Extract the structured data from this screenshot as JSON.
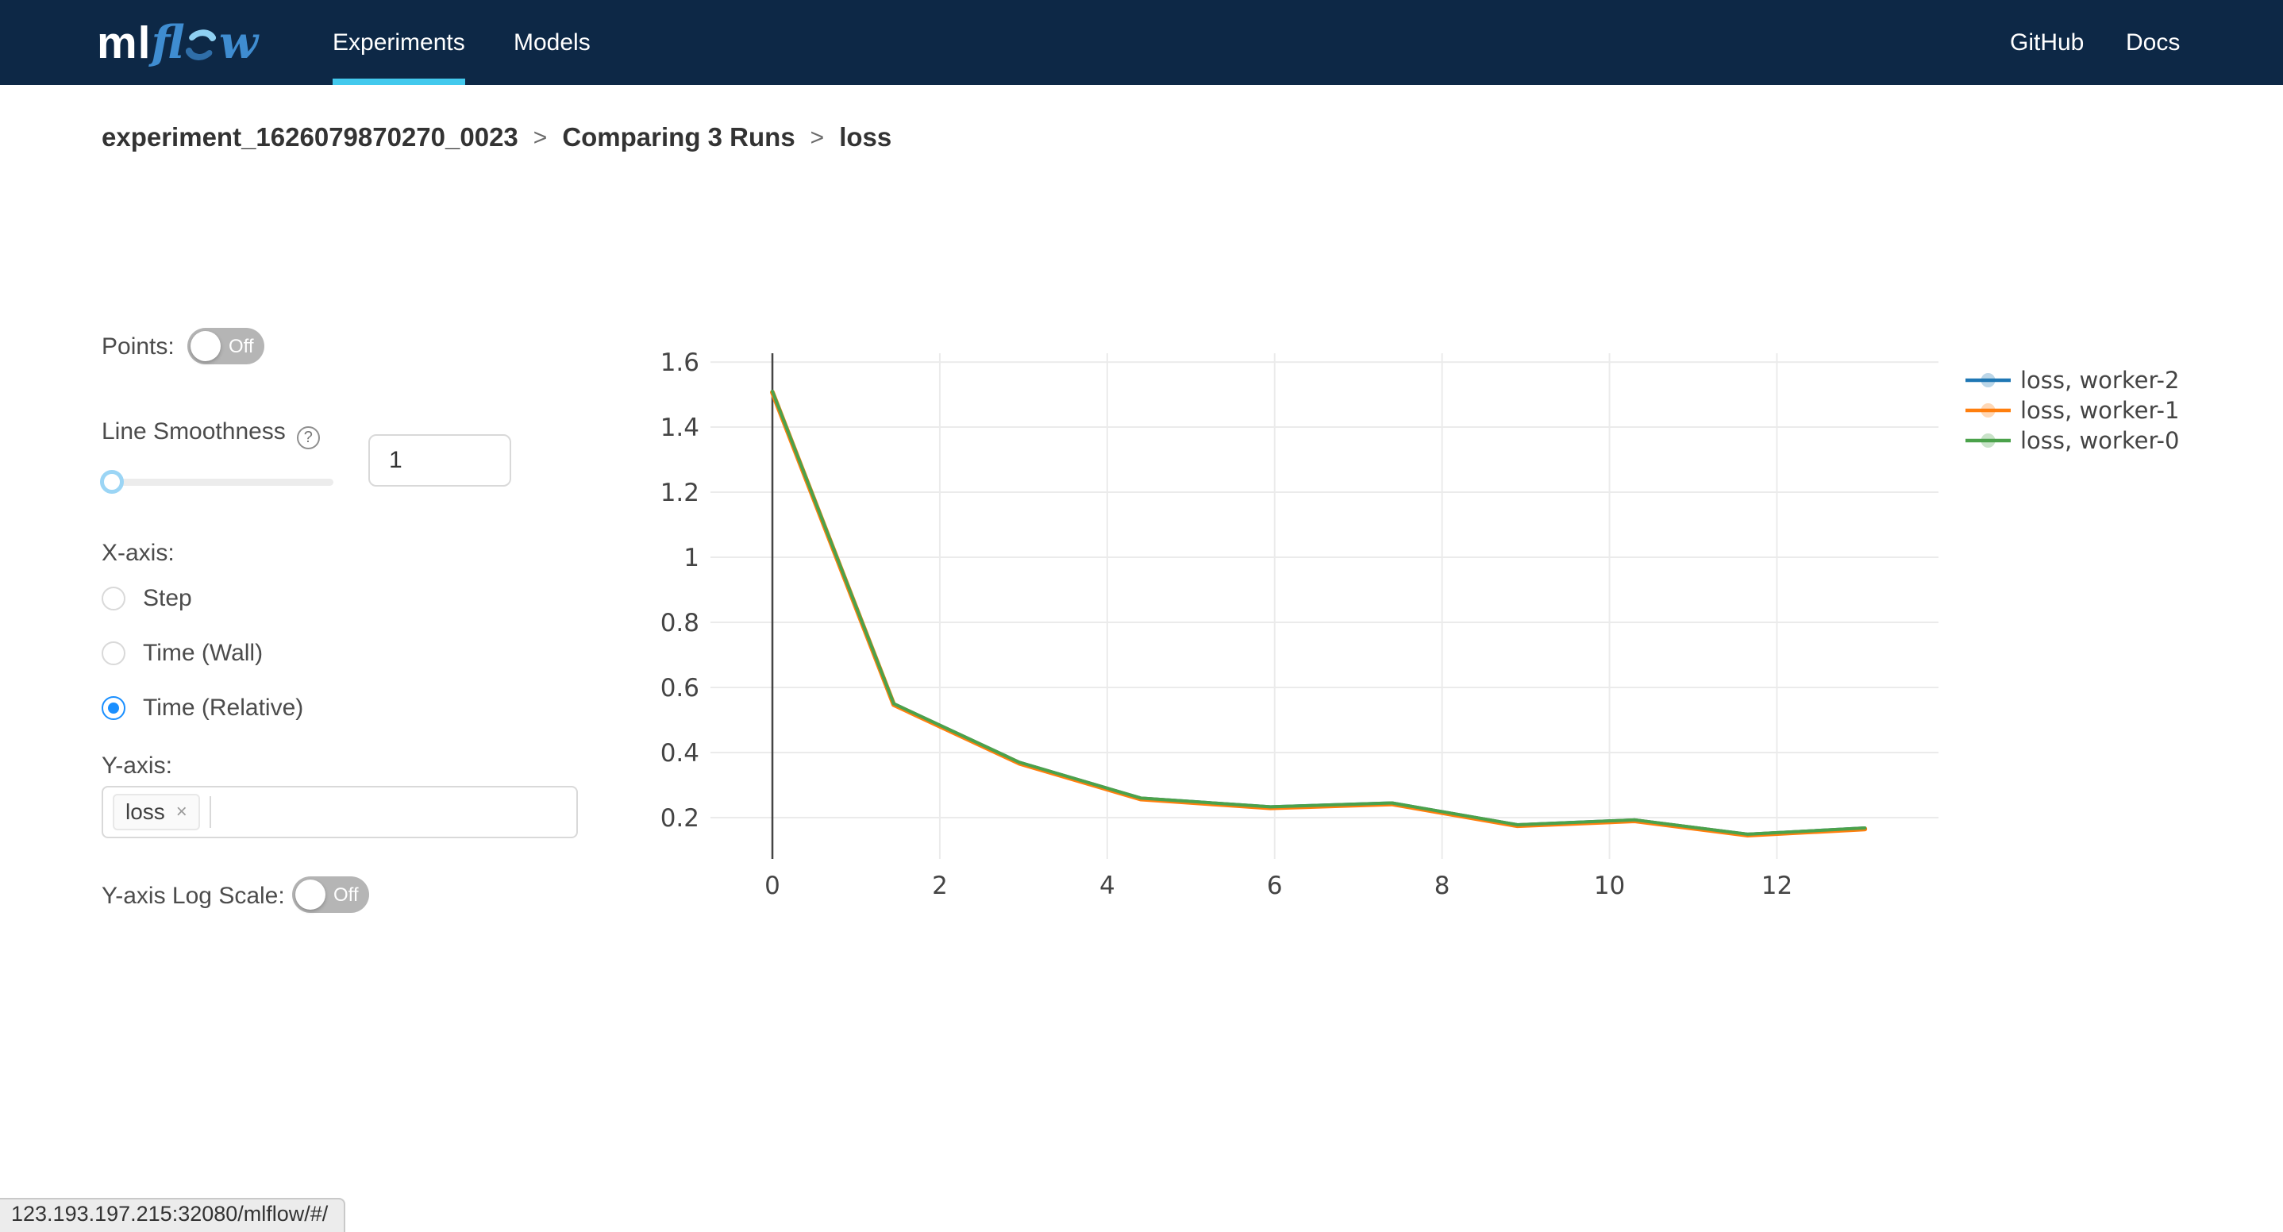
{
  "navbar": {
    "logo": {
      "ml": "ml",
      "flow_fl": "fl",
      "flow_w": "w"
    },
    "tabs": [
      {
        "label": "Experiments",
        "active": true
      },
      {
        "label": "Models",
        "active": false
      }
    ],
    "links": [
      {
        "label": "GitHub"
      },
      {
        "label": "Docs"
      }
    ],
    "colors": {
      "background": "#0d2846",
      "active_tab_underline": "#43c9ed"
    }
  },
  "breadcrumb": {
    "separator": ">",
    "items": [
      {
        "label": "experiment_1626079870270_0023"
      },
      {
        "label": "Comparing 3 Runs"
      },
      {
        "label": "loss"
      }
    ]
  },
  "controls": {
    "points": {
      "label": "Points:",
      "state": "Off"
    },
    "smoothness": {
      "label": "Line Smoothness",
      "help": "?",
      "value": "1"
    },
    "xaxis": {
      "label": "X-axis:",
      "options": [
        {
          "label": "Step",
          "selected": false
        },
        {
          "label": "Time (Wall)",
          "selected": false
        },
        {
          "label": "Time (Relative)",
          "selected": true
        }
      ]
    },
    "yaxis": {
      "label": "Y-axis:",
      "tags": [
        {
          "label": "loss",
          "remove": "×"
        }
      ]
    },
    "log_scale": {
      "label": "Y-axis Log Scale:",
      "state": "Off"
    },
    "accent_color": "#1a8fff"
  },
  "chart_data": {
    "type": "line",
    "x": [
      0,
      1.45,
      2.95,
      4.4,
      5.95,
      7.4,
      8.9,
      10.3,
      11.65,
      13.05
    ],
    "series": [
      {
        "name": "loss, worker-2",
        "color": "#1f77b4",
        "values": [
          1.51,
          0.55,
          0.37,
          0.26,
          0.233,
          0.245,
          0.178,
          0.193,
          0.149,
          0.168
        ]
      },
      {
        "name": "loss, worker-1",
        "color": "#ff7f0e",
        "values": [
          1.51,
          0.55,
          0.37,
          0.26,
          0.233,
          0.245,
          0.178,
          0.193,
          0.149,
          0.168
        ]
      },
      {
        "name": "loss, worker-0",
        "color": "#4ba24b",
        "values": [
          1.51,
          0.55,
          0.37,
          0.26,
          0.233,
          0.245,
          0.178,
          0.193,
          0.149,
          0.168
        ]
      }
    ],
    "xticks": [
      0,
      2,
      4,
      6,
      8,
      10,
      12
    ],
    "yticks": [
      0.2,
      0.4,
      0.6,
      0.8,
      1,
      1.2,
      1.4,
      1.6
    ],
    "xlim": [
      -0.74,
      13.93
    ],
    "ylim": [
      0.073,
      1.627
    ],
    "zeroline_x": 0,
    "grid": true,
    "legend_position": "right-top",
    "grid_color": "#ebebeb",
    "axis_text_color": "#444444"
  },
  "statusbar": {
    "url": "123.193.197.215:32080/mlflow/#/"
  }
}
